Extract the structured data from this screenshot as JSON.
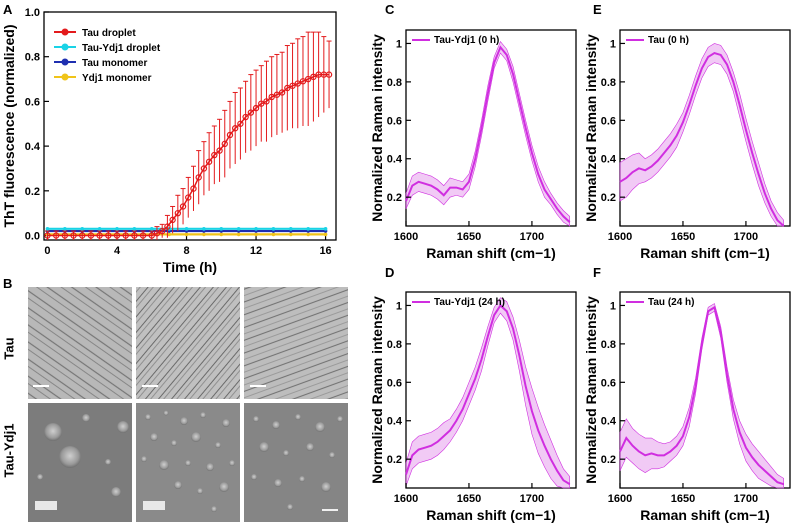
{
  "panels": {
    "A": "A",
    "B": "B",
    "C": "C",
    "D": "D",
    "E": "E",
    "F": "F"
  },
  "colors": {
    "tau_droplet": "#e31a1c",
    "tau_ydj1_droplet": "#19d3e6",
    "tau_monomer": "#1f2fb0",
    "ydj1_monomer": "#f0c419",
    "raman": "#d02ee0",
    "raman_band": "#e8a6ef"
  },
  "chart_data": [
    {
      "id": "A",
      "type": "line",
      "xlabel": "Time (h)",
      "ylabel": "ThT fluorescence (normalized)",
      "xlim": [
        -0.2,
        16.6
      ],
      "ylim": [
        -0.02,
        1.0
      ],
      "xticks": [
        0,
        4,
        8,
        12,
        16
      ],
      "yticks": [
        0.0,
        0.2,
        0.4,
        0.6,
        0.8,
        1.0
      ],
      "ytick_labels": [
        "0.0",
        "0.2",
        "0.4",
        "0.6",
        "0.8",
        "1.0"
      ],
      "legend": [
        "Tau droplet",
        "Tau-Ydj1 droplet",
        "Tau monomer",
        "Ydj1 monomer"
      ],
      "series": [
        {
          "name": "Tau droplet",
          "color_key": "tau_droplet",
          "x": [
            0,
            0.5,
            1,
            1.5,
            2,
            2.5,
            3,
            3.5,
            4,
            4.5,
            5,
            5.5,
            6,
            6.3,
            6.6,
            6.9,
            7.2,
            7.5,
            7.8,
            8.1,
            8.4,
            8.7,
            9.0,
            9.3,
            9.6,
            9.9,
            10.2,
            10.5,
            10.8,
            11.1,
            11.4,
            11.7,
            12.0,
            12.3,
            12.6,
            12.9,
            13.2,
            13.5,
            13.8,
            14.1,
            14.4,
            14.7,
            15.0,
            15.3,
            15.6,
            15.9,
            16.2
          ],
          "values": [
            0,
            0,
            0,
            0,
            0,
            0,
            0,
            0,
            0,
            0,
            0,
            0,
            0,
            0.01,
            0.02,
            0.04,
            0.07,
            0.1,
            0.13,
            0.17,
            0.21,
            0.26,
            0.3,
            0.33,
            0.36,
            0.38,
            0.41,
            0.45,
            0.48,
            0.5,
            0.53,
            0.55,
            0.57,
            0.59,
            0.6,
            0.62,
            0.63,
            0.64,
            0.66,
            0.67,
            0.68,
            0.69,
            0.7,
            0.71,
            0.72,
            0.72,
            0.72
          ],
          "errors": [
            0.02,
            0.02,
            0.02,
            0.02,
            0.02,
            0.02,
            0.02,
            0.02,
            0.02,
            0.02,
            0.02,
            0.02,
            0.02,
            0.03,
            0.03,
            0.05,
            0.06,
            0.08,
            0.08,
            0.09,
            0.1,
            0.12,
            0.12,
            0.13,
            0.13,
            0.14,
            0.15,
            0.15,
            0.16,
            0.16,
            0.16,
            0.17,
            0.17,
            0.17,
            0.18,
            0.18,
            0.18,
            0.18,
            0.19,
            0.19,
            0.2,
            0.2,
            0.21,
            0.2,
            0.19,
            0.17,
            0.15
          ]
        },
        {
          "name": "Tau-Ydj1 droplet",
          "color_key": "tau_ydj1_droplet",
          "x": [
            0,
            1,
            2,
            3,
            4,
            5,
            6,
            7,
            8,
            9,
            10,
            11,
            12,
            13,
            14,
            15,
            16
          ],
          "values": [
            0.03,
            0.03,
            0.03,
            0.03,
            0.03,
            0.03,
            0.03,
            0.03,
            0.03,
            0.03,
            0.03,
            0.03,
            0.03,
            0.03,
            0.03,
            0.03,
            0.03
          ]
        },
        {
          "name": "Tau monomer",
          "color_key": "tau_monomer",
          "x": [
            0,
            1,
            2,
            3,
            4,
            5,
            6,
            7,
            8,
            9,
            10,
            11,
            12,
            13,
            14,
            15,
            16
          ],
          "values": [
            0.02,
            0.02,
            0.02,
            0.02,
            0.02,
            0.02,
            0.02,
            0.02,
            0.02,
            0.02,
            0.02,
            0.02,
            0.02,
            0.02,
            0.02,
            0.02,
            0.02
          ]
        },
        {
          "name": "Ydj1 monomer",
          "color_key": "ydj1_monomer",
          "x": [
            0,
            1,
            2,
            3,
            4,
            5,
            6,
            7,
            8,
            9,
            10,
            11,
            12,
            13,
            14,
            15,
            16
          ],
          "values": [
            0.005,
            0.005,
            0.005,
            0.005,
            0.005,
            0.005,
            0.005,
            0.005,
            0.005,
            0.005,
            0.005,
            0.005,
            0.005,
            0.005,
            0.005,
            0.005,
            0.005
          ]
        }
      ]
    },
    {
      "id": "C",
      "type": "line",
      "legend": [
        "Tau-Ydj1 (0 h)"
      ],
      "xlabel": "Raman shift (cm−1)",
      "ylabel": "Normalized Raman intensity",
      "xlim": [
        1600,
        1735
      ],
      "ylim": [
        0.05,
        1.07
      ],
      "xticks": [
        1600,
        1650,
        1700
      ],
      "yticks": [
        0.2,
        0.4,
        0.6,
        0.8,
        1
      ],
      "ytick_labels": [
        "0.2",
        "0.4",
        "0.6",
        "0.8",
        "1"
      ],
      "x": [
        1600,
        1605,
        1610,
        1615,
        1620,
        1625,
        1630,
        1635,
        1640,
        1645,
        1650,
        1655,
        1660,
        1665,
        1670,
        1675,
        1680,
        1685,
        1690,
        1695,
        1700,
        1705,
        1710,
        1715,
        1720,
        1725,
        1730
      ],
      "values": [
        0.18,
        0.26,
        0.28,
        0.27,
        0.26,
        0.24,
        0.21,
        0.25,
        0.25,
        0.24,
        0.28,
        0.4,
        0.56,
        0.74,
        0.9,
        0.98,
        0.94,
        0.84,
        0.7,
        0.56,
        0.43,
        0.32,
        0.24,
        0.19,
        0.14,
        0.1,
        0.07
      ],
      "band": [
        0.04,
        0.05,
        0.05,
        0.05,
        0.05,
        0.05,
        0.05,
        0.05,
        0.04,
        0.04,
        0.04,
        0.04,
        0.04,
        0.04,
        0.03,
        0.03,
        0.03,
        0.04,
        0.04,
        0.04,
        0.04,
        0.04,
        0.04,
        0.03,
        0.03,
        0.03,
        0.03
      ]
    },
    {
      "id": "D",
      "type": "line",
      "legend": [
        "Tau-Ydj1 (24 h)"
      ],
      "xlabel": "Raman shift (cm−1)",
      "ylabel": "Normalized Raman intensity",
      "xlim": [
        1600,
        1735
      ],
      "ylim": [
        0.05,
        1.07
      ],
      "xticks": [
        1600,
        1650,
        1700
      ],
      "yticks": [
        0.2,
        0.4,
        0.6,
        0.8,
        1
      ],
      "ytick_labels": [
        "0.2",
        "0.4",
        "0.6",
        "0.8",
        "1"
      ],
      "x": [
        1600,
        1605,
        1610,
        1615,
        1620,
        1625,
        1630,
        1635,
        1640,
        1645,
        1650,
        1655,
        1660,
        1665,
        1670,
        1675,
        1680,
        1685,
        1690,
        1695,
        1700,
        1705,
        1710,
        1715,
        1720,
        1725,
        1730
      ],
      "values": [
        0.12,
        0.22,
        0.25,
        0.26,
        0.27,
        0.29,
        0.32,
        0.35,
        0.4,
        0.46,
        0.54,
        0.62,
        0.72,
        0.84,
        0.95,
        1.0,
        0.97,
        0.88,
        0.74,
        0.58,
        0.45,
        0.35,
        0.27,
        0.2,
        0.14,
        0.09,
        0.07
      ],
      "band": [
        0.06,
        0.07,
        0.07,
        0.07,
        0.07,
        0.07,
        0.07,
        0.06,
        0.06,
        0.06,
        0.06,
        0.06,
        0.06,
        0.05,
        0.04,
        0.04,
        0.05,
        0.06,
        0.08,
        0.1,
        0.12,
        0.12,
        0.11,
        0.1,
        0.08,
        0.06,
        0.04
      ]
    },
    {
      "id": "E",
      "type": "line",
      "legend": [
        "Tau (0 h)"
      ],
      "xlabel": "Raman shift (cm−1)",
      "ylabel": "Normalized Raman intensity",
      "xlim": [
        1600,
        1735
      ],
      "ylim": [
        0.05,
        1.07
      ],
      "xticks": [
        1600,
        1650,
        1700
      ],
      "yticks": [
        0.2,
        0.4,
        0.6,
        0.8,
        1
      ],
      "ytick_labels": [
        "0.2",
        "0.4",
        "0.6",
        "0.8",
        "1"
      ],
      "x": [
        1600,
        1605,
        1610,
        1615,
        1620,
        1625,
        1630,
        1635,
        1640,
        1645,
        1650,
        1655,
        1660,
        1665,
        1670,
        1675,
        1680,
        1685,
        1690,
        1695,
        1700,
        1705,
        1710,
        1715,
        1720,
        1725,
        1730
      ],
      "values": [
        0.28,
        0.3,
        0.33,
        0.35,
        0.34,
        0.36,
        0.39,
        0.43,
        0.47,
        0.52,
        0.59,
        0.68,
        0.78,
        0.87,
        0.93,
        0.95,
        0.94,
        0.89,
        0.8,
        0.68,
        0.55,
        0.43,
        0.32,
        0.22,
        0.14,
        0.08,
        0.05
      ],
      "band": [
        0.1,
        0.1,
        0.09,
        0.08,
        0.06,
        0.06,
        0.06,
        0.06,
        0.06,
        0.06,
        0.05,
        0.05,
        0.05,
        0.05,
        0.05,
        0.05,
        0.05,
        0.05,
        0.05,
        0.06,
        0.06,
        0.06,
        0.06,
        0.05,
        0.04,
        0.04,
        0.03
      ]
    },
    {
      "id": "F",
      "type": "line",
      "legend": [
        "Tau (24 h)"
      ],
      "xlabel": "Raman shift (cm−1)",
      "ylabel": "Normalized Raman intensity",
      "xlim": [
        1600,
        1735
      ],
      "ylim": [
        0.05,
        1.07
      ],
      "xticks": [
        1600,
        1650,
        1700
      ],
      "yticks": [
        0.2,
        0.4,
        0.6,
        0.8,
        1
      ],
      "ytick_labels": [
        "0.2",
        "0.4",
        "0.6",
        "0.8",
        "1"
      ],
      "x": [
        1600,
        1605,
        1610,
        1615,
        1620,
        1625,
        1630,
        1635,
        1640,
        1645,
        1650,
        1655,
        1660,
        1665,
        1670,
        1675,
        1680,
        1685,
        1690,
        1695,
        1700,
        1705,
        1710,
        1715,
        1720,
        1725,
        1730
      ],
      "values": [
        0.24,
        0.31,
        0.27,
        0.24,
        0.22,
        0.23,
        0.22,
        0.22,
        0.24,
        0.27,
        0.32,
        0.42,
        0.58,
        0.8,
        0.97,
        0.99,
        0.86,
        0.64,
        0.46,
        0.34,
        0.26,
        0.21,
        0.17,
        0.14,
        0.11,
        0.08,
        0.07
      ],
      "band": [
        0.1,
        0.1,
        0.09,
        0.09,
        0.09,
        0.08,
        0.07,
        0.06,
        0.05,
        0.05,
        0.05,
        0.05,
        0.04,
        0.03,
        0.02,
        0.02,
        0.03,
        0.04,
        0.05,
        0.06,
        0.07,
        0.07,
        0.07,
        0.06,
        0.05,
        0.04,
        0.03
      ]
    }
  ],
  "microscopy": {
    "row_tau": "Tau",
    "row_tau_ydj1": "Tau-Ydj1"
  }
}
